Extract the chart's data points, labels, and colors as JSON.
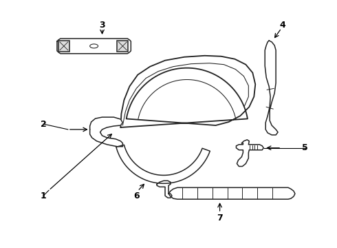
{
  "background_color": "#ffffff",
  "line_color": "#222222",
  "line_width": 1.1,
  "arrow_color": "#000000",
  "text_color": "#000000",
  "label_fontsize": 9,
  "figsize": [
    4.9,
    3.6
  ],
  "dpi": 100
}
